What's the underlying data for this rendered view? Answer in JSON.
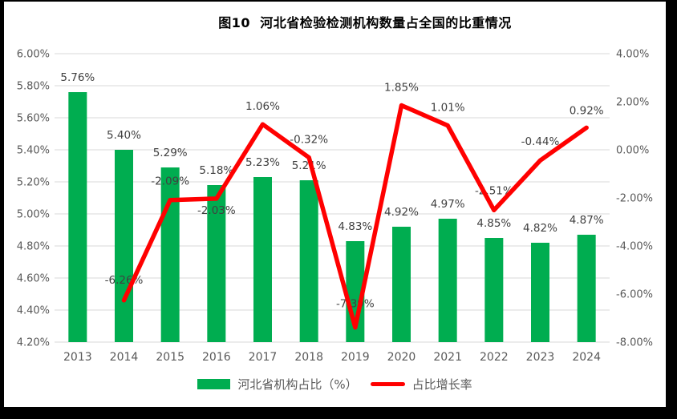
{
  "title": "图10  河北省检验检测机构数量占全国的比重情况",
  "colors": {
    "frame": "#000000",
    "card": "#ffffff",
    "bar": "#00AD50",
    "line": "#FF0000",
    "grid": "#D9D9D9",
    "tick_text": "#595959",
    "label_text": "#404040",
    "title_text": "#000000"
  },
  "legend": {
    "position": "bottom",
    "items": [
      {
        "label": "河北省机构占比（%）",
        "swatch": "bar-swatch"
      },
      {
        "label": "占比增长率",
        "swatch": "line-swatch"
      }
    ]
  },
  "chart_data": {
    "type": "combo bar+line, dual axis",
    "title": "图10  河北省检验检测机构数量占全国的比重情况",
    "categories": [
      "2013",
      "2014",
      "2015",
      "2016",
      "2017",
      "2018",
      "2019",
      "2020",
      "2021",
      "2022",
      "2023",
      "2024"
    ],
    "series": [
      {
        "name": "河北省机构占比（%）",
        "type": "bar",
        "axis": "left",
        "color": "#00AD50",
        "values": [
          5.76,
          5.4,
          5.29,
          5.18,
          5.23,
          5.21,
          4.83,
          4.92,
          4.97,
          4.85,
          4.82,
          4.87
        ],
        "labels": [
          "5.76%",
          "5.40%",
          "5.29%",
          "5.18%",
          "5.23%",
          "5.21%",
          "4.83%",
          "4.92%",
          "4.97%",
          "4.85%",
          "4.82%",
          "4.87%"
        ]
      },
      {
        "name": "占比增长率",
        "type": "line",
        "axis": "right",
        "color": "#FF0000",
        "values": [
          null,
          -6.26,
          -2.09,
          -2.03,
          1.06,
          -0.32,
          -7.39,
          1.85,
          1.01,
          -2.51,
          -0.44,
          0.92
        ],
        "labels": [
          null,
          "-6.26%",
          "-2.09%",
          "-2.03%",
          "1.06%",
          "-0.32%",
          "-7.39%",
          "1.85%",
          "1.01%",
          "-2.51%",
          "-0.44%",
          "0.92%"
        ],
        "label_offsets": [
          null,
          -21,
          -19,
          19,
          -18,
          -18,
          -25,
          -18,
          -18,
          -20,
          -19,
          -17
        ]
      }
    ],
    "left_axis": {
      "min": 4.2,
      "max": 6.0,
      "step": 0.2,
      "tick_labels": [
        "6.00%",
        "5.80%",
        "5.60%",
        "5.40%",
        "5.20%",
        "5.00%",
        "4.80%",
        "4.60%",
        "4.40%",
        "4.20%"
      ]
    },
    "right_axis": {
      "min": -8.0,
      "max": 4.0,
      "step": 2.0,
      "tick_labels": [
        "4.00%",
        "2.00%",
        "0.00%",
        "-2.00%",
        "-4.00%",
        "-6.00%",
        "-8.00%"
      ]
    },
    "grid": true,
    "legend_position": "bottom"
  }
}
